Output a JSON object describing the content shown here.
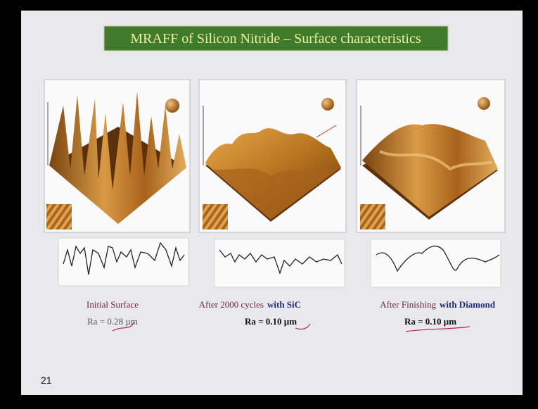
{
  "title": "MRAFF of Silicon Nitride – Surface characteristics",
  "panels": [
    {
      "caption": "Initial Surface",
      "roughness": "Ra = 0.28 µm"
    },
    {
      "caption": "After 2000 cycles",
      "caption_emphasis": "with SiC",
      "roughness": "Ra = 0.10 µm"
    },
    {
      "caption": "After Finishing",
      "caption_emphasis": "with Diamond",
      "roughness": "Ra = 0.10 µm"
    }
  ],
  "slide_number": "21"
}
